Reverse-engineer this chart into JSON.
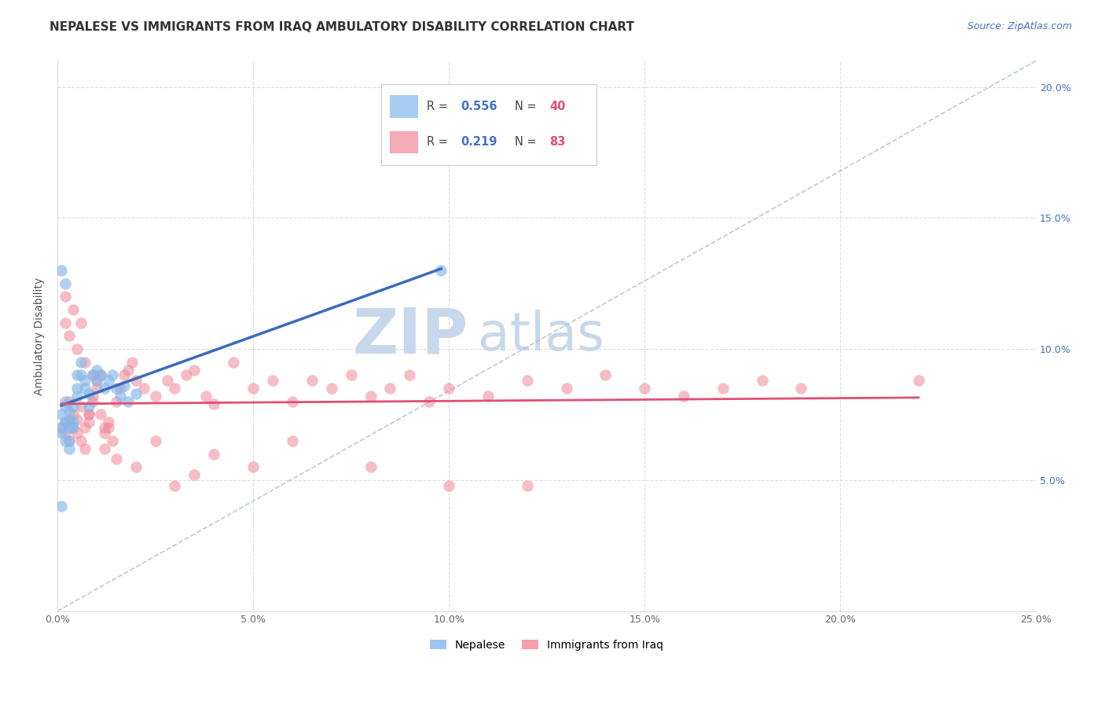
{
  "title": "NEPALESE VS IMMIGRANTS FROM IRAQ AMBULATORY DISABILITY CORRELATION CHART",
  "source": "Source: ZipAtlas.com",
  "ylabel": "Ambulatory Disability",
  "watermark_zip": "ZIP",
  "watermark_atlas": "atlas",
  "xlim": [
    0.0,
    0.25
  ],
  "ylim": [
    0.0,
    0.21
  ],
  "xticks": [
    0.0,
    0.05,
    0.1,
    0.15,
    0.2,
    0.25
  ],
  "yticks_right": [
    0.05,
    0.1,
    0.15,
    0.2
  ],
  "xtick_labels": [
    "0.0%",
    "5.0%",
    "10.0%",
    "15.0%",
    "20.0%",
    "25.0%"
  ],
  "ytick_labels_right": [
    "5.0%",
    "10.0%",
    "15.0%",
    "20.0%"
  ],
  "blue_color": "#85B8EA",
  "pink_color": "#F08898",
  "blue_line_color": "#3A6BBF",
  "pink_line_color": "#E05070",
  "dashed_line_color": "#AABBD4",
  "title_fontsize": 11,
  "source_fontsize": 9,
  "axis_label_fontsize": 10,
  "tick_fontsize": 9,
  "watermark_color": "#C8D8EC",
  "nepalese_x": [
    0.001,
    0.001,
    0.001,
    0.002,
    0.002,
    0.002,
    0.002,
    0.003,
    0.003,
    0.003,
    0.003,
    0.003,
    0.004,
    0.004,
    0.004,
    0.005,
    0.005,
    0.005,
    0.006,
    0.006,
    0.007,
    0.007,
    0.008,
    0.008,
    0.009,
    0.01,
    0.01,
    0.011,
    0.012,
    0.013,
    0.014,
    0.015,
    0.016,
    0.017,
    0.018,
    0.02,
    0.001,
    0.002,
    0.098,
    0.001
  ],
  "nepalese_y": [
    0.07,
    0.075,
    0.068,
    0.065,
    0.072,
    0.08,
    0.078,
    0.07,
    0.073,
    0.076,
    0.065,
    0.062,
    0.07,
    0.072,
    0.078,
    0.09,
    0.085,
    0.082,
    0.095,
    0.09,
    0.085,
    0.088,
    0.083,
    0.078,
    0.09,
    0.092,
    0.088,
    0.09,
    0.085,
    0.088,
    0.09,
    0.085,
    0.082,
    0.086,
    0.08,
    0.083,
    0.13,
    0.125,
    0.13,
    0.04
  ],
  "iraq_x": [
    0.001,
    0.002,
    0.002,
    0.003,
    0.003,
    0.004,
    0.004,
    0.005,
    0.005,
    0.006,
    0.006,
    0.007,
    0.007,
    0.008,
    0.008,
    0.009,
    0.009,
    0.01,
    0.01,
    0.011,
    0.011,
    0.012,
    0.012,
    0.013,
    0.014,
    0.015,
    0.016,
    0.017,
    0.018,
    0.019,
    0.02,
    0.022,
    0.025,
    0.028,
    0.03,
    0.033,
    0.035,
    0.038,
    0.04,
    0.045,
    0.05,
    0.055,
    0.06,
    0.065,
    0.07,
    0.075,
    0.08,
    0.085,
    0.09,
    0.095,
    0.1,
    0.11,
    0.12,
    0.13,
    0.14,
    0.15,
    0.16,
    0.17,
    0.18,
    0.19,
    0.002,
    0.003,
    0.005,
    0.007,
    0.009,
    0.012,
    0.015,
    0.02,
    0.025,
    0.03,
    0.035,
    0.04,
    0.05,
    0.06,
    0.08,
    0.1,
    0.12,
    0.002,
    0.004,
    0.006,
    0.008,
    0.013,
    0.22
  ],
  "iraq_y": [
    0.07,
    0.068,
    0.072,
    0.065,
    0.08,
    0.075,
    0.07,
    0.068,
    0.073,
    0.078,
    0.065,
    0.062,
    0.07,
    0.072,
    0.075,
    0.08,
    0.082,
    0.085,
    0.088,
    0.09,
    0.075,
    0.07,
    0.068,
    0.072,
    0.065,
    0.08,
    0.085,
    0.09,
    0.092,
    0.095,
    0.088,
    0.085,
    0.082,
    0.088,
    0.085,
    0.09,
    0.092,
    0.082,
    0.079,
    0.095,
    0.085,
    0.088,
    0.08,
    0.088,
    0.085,
    0.09,
    0.082,
    0.085,
    0.09,
    0.08,
    0.085,
    0.082,
    0.088,
    0.085,
    0.09,
    0.085,
    0.082,
    0.085,
    0.088,
    0.085,
    0.11,
    0.105,
    0.1,
    0.095,
    0.09,
    0.062,
    0.058,
    0.055,
    0.065,
    0.048,
    0.052,
    0.06,
    0.055,
    0.065,
    0.055,
    0.048,
    0.048,
    0.12,
    0.115,
    0.11,
    0.075,
    0.07,
    0.088
  ]
}
